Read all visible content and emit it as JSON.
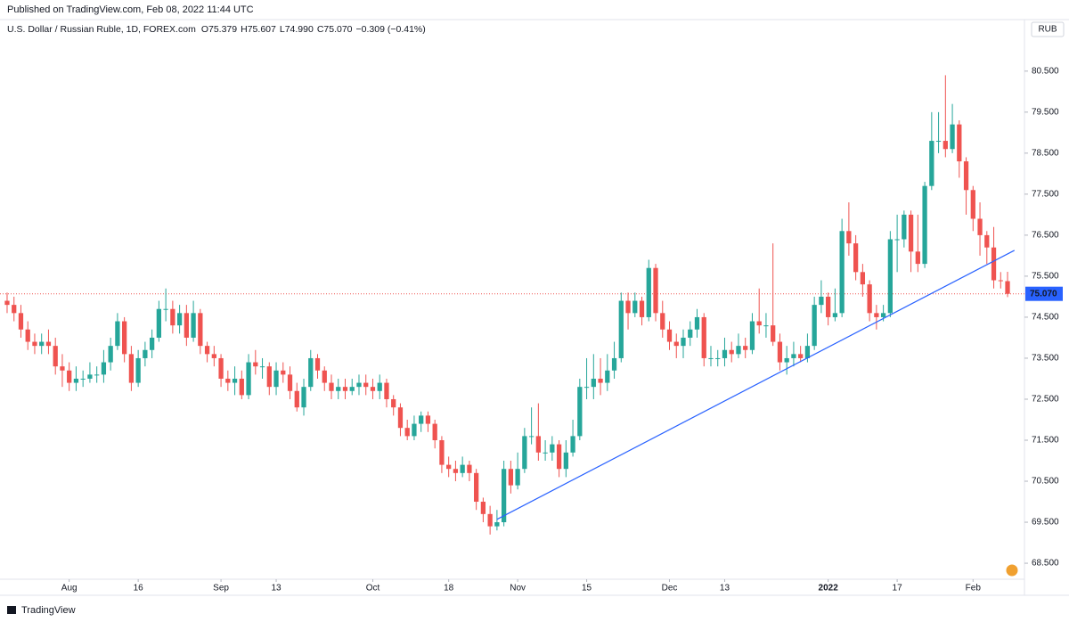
{
  "header": {
    "published": "Published on TradingView.com, Feb 08, 2022 11:44 UTC",
    "brand": "TradingView"
  },
  "chart_data": {
    "type": "candlestick",
    "title": "U.S. Dollar / Russian Ruble, 1D, FOREX.com",
    "ohlc_legend": [
      "O",
      "75.379",
      "H",
      "75.607",
      "L",
      "74.990",
      "C",
      "75.070",
      "−0.309 (−0.41%)"
    ],
    "currency": "RUB",
    "up_color": "#26a69a",
    "down_color": "#ef5350",
    "open": [
      74.9,
      74.8,
      74.6,
      74.2,
      73.9,
      73.8,
      73.9,
      73.8,
      73.3,
      73.2,
      72.9,
      73.0,
      73.0,
      73.1,
      73.1,
      73.4,
      73.8,
      74.4,
      73.6,
      72.9,
      73.5,
      73.7,
      74.0,
      74.7,
      74.7,
      74.3,
      74.6,
      74.0,
      74.6,
      73.8,
      73.6,
      73.5,
      73.0,
      72.9,
      73.0,
      72.6,
      73.4,
      73.3,
      73.3,
      72.8,
      73.2,
      73.1,
      72.7,
      72.3,
      72.8,
      73.5,
      73.2,
      72.9,
      72.7,
      72.8,
      72.7,
      72.8,
      72.9,
      72.8,
      72.7,
      72.9,
      72.5,
      72.3,
      71.8,
      71.6,
      71.9,
      72.1,
      71.9,
      71.5,
      70.9,
      70.8,
      70.7,
      70.9,
      70.7,
      70.0,
      69.7,
      69.4,
      69.5,
      70.8,
      70.4,
      70.8,
      71.6,
      71.6,
      71.2,
      71.2,
      71.4,
      70.8,
      71.2,
      71.6,
      72.8,
      72.8,
      73.0,
      72.9,
      73.2,
      73.5,
      74.9,
      74.6,
      74.9,
      74.5,
      75.7,
      74.6,
      74.2,
      73.9,
      73.8,
      74.0,
      74.2,
      74.5,
      73.5,
      73.5,
      73.5,
      73.7,
      73.6,
      73.8,
      73.7,
      74.4,
      74.3,
      74.3,
      73.9,
      73.4,
      73.5,
      73.6,
      73.5,
      73.8,
      74.8,
      75.0,
      74.5,
      74.6,
      76.6,
      76.3,
      75.6,
      75.3,
      74.6,
      74.5,
      74.6,
      76.4,
      76.4,
      77.0,
      76.1,
      75.8,
      77.7,
      78.8,
      78.8,
      78.6,
      79.2,
      78.3,
      77.6,
      76.9,
      76.5,
      76.2,
      75.4,
      75.379
    ],
    "high": [
      75.1,
      75.0,
      74.8,
      74.4,
      74.1,
      74.1,
      74.2,
      74.0,
      73.6,
      73.4,
      73.3,
      73.2,
      73.4,
      73.3,
      73.7,
      74.0,
      74.6,
      74.5,
      73.8,
      73.7,
      73.9,
      74.2,
      74.9,
      75.2,
      74.9,
      74.8,
      74.8,
      74.9,
      74.7,
      73.9,
      73.8,
      73.6,
      73.2,
      73.3,
      73.2,
      73.6,
      73.7,
      73.5,
      73.4,
      73.4,
      73.4,
      73.3,
      72.9,
      73.0,
      73.7,
      73.6,
      73.3,
      73.1,
      73.0,
      73.0,
      73.0,
      73.1,
      73.1,
      73.0,
      73.1,
      73.0,
      72.6,
      72.4,
      72.0,
      72.1,
      72.2,
      72.2,
      72.0,
      71.6,
      71.1,
      71.0,
      71.1,
      71.0,
      70.8,
      70.1,
      69.9,
      69.8,
      71.0,
      71.0,
      71.2,
      71.8,
      72.3,
      72.4,
      71.5,
      71.6,
      71.5,
      71.5,
      72.0,
      73.0,
      73.5,
      73.6,
      73.5,
      73.6,
      73.9,
      75.1,
      75.1,
      75.1,
      75.0,
      75.9,
      75.8,
      74.9,
      74.4,
      74.1,
      74.2,
      74.4,
      74.7,
      74.6,
      73.8,
      73.7,
      74.0,
      73.9,
      74.1,
      74.0,
      74.6,
      75.2,
      74.6,
      76.3,
      74.1,
      73.8,
      73.9,
      73.8,
      74.1,
      75.0,
      75.4,
      75.1,
      75.2,
      76.9,
      77.3,
      76.5,
      75.8,
      75.4,
      74.8,
      74.8,
      76.6,
      77.0,
      77.1,
      77.1,
      77.0,
      77.8,
      79.5,
      79.5,
      80.4,
      79.7,
      79.3,
      78.4,
      77.7,
      77.3,
      76.6,
      76.7,
      75.6,
      75.607
    ],
    "low": [
      74.6,
      74.4,
      74.0,
      73.7,
      73.6,
      73.6,
      73.6,
      73.1,
      72.8,
      72.7,
      72.7,
      72.8,
      72.9,
      72.9,
      72.9,
      73.2,
      73.7,
      73.4,
      72.7,
      72.8,
      73.3,
      73.5,
      73.9,
      74.4,
      74.1,
      74.1,
      73.8,
      73.9,
      73.6,
      73.4,
      73.3,
      72.8,
      72.7,
      72.6,
      72.5,
      72.5,
      73.1,
      73.0,
      72.6,
      72.6,
      72.9,
      72.5,
      72.2,
      72.1,
      72.7,
      73.0,
      72.7,
      72.5,
      72.5,
      72.5,
      72.6,
      72.6,
      72.6,
      72.5,
      72.5,
      72.3,
      72.1,
      71.6,
      71.5,
      71.5,
      71.7,
      71.7,
      71.3,
      70.7,
      70.6,
      70.5,
      70.6,
      70.5,
      69.8,
      69.5,
      69.2,
      69.3,
      69.4,
      70.2,
      70.3,
      70.7,
      71.4,
      71.0,
      71.0,
      71.0,
      70.6,
      70.6,
      71.1,
      71.5,
      72.5,
      72.5,
      72.6,
      72.7,
      73.0,
      73.4,
      74.2,
      74.5,
      74.3,
      74.4,
      74.4,
      74.0,
      73.7,
      73.5,
      73.5,
      73.8,
      74.0,
      73.3,
      73.3,
      73.3,
      73.3,
      73.4,
      73.5,
      73.5,
      73.6,
      74.1,
      74.0,
      73.8,
      73.2,
      73.1,
      73.3,
      73.4,
      73.4,
      73.7,
      74.6,
      74.3,
      74.4,
      74.5,
      76.0,
      75.4,
      75.0,
      74.4,
      74.2,
      74.4,
      74.5,
      75.6,
      76.2,
      75.6,
      75.6,
      75.7,
      77.6,
      78.5,
      78.4,
      78.5,
      77.9,
      77.0,
      76.6,
      76.0,
      75.8,
      75.2,
      75.2,
      74.99
    ],
    "close": [
      74.8,
      74.6,
      74.2,
      73.9,
      73.8,
      73.9,
      73.8,
      73.3,
      73.2,
      72.9,
      73.0,
      73.0,
      73.1,
      73.1,
      73.4,
      73.8,
      74.4,
      73.6,
      72.9,
      73.5,
      73.7,
      74.0,
      74.7,
      74.7,
      74.3,
      74.6,
      74.0,
      74.6,
      73.8,
      73.6,
      73.5,
      73.0,
      72.9,
      73.0,
      72.6,
      73.4,
      73.3,
      73.3,
      72.8,
      73.2,
      73.1,
      72.7,
      72.3,
      72.8,
      73.5,
      73.2,
      72.9,
      72.7,
      72.8,
      72.7,
      72.8,
      72.9,
      72.8,
      72.7,
      72.9,
      72.5,
      72.3,
      71.8,
      71.6,
      71.9,
      72.1,
      71.9,
      71.5,
      70.9,
      70.8,
      70.7,
      70.9,
      70.7,
      70.0,
      69.7,
      69.4,
      69.5,
      70.8,
      70.4,
      70.8,
      71.6,
      71.6,
      71.2,
      71.2,
      71.4,
      70.8,
      71.2,
      71.6,
      72.8,
      72.8,
      73.0,
      72.9,
      73.2,
      73.5,
      74.9,
      74.6,
      74.9,
      74.5,
      75.7,
      74.6,
      74.2,
      73.9,
      73.8,
      74.0,
      74.2,
      74.5,
      73.5,
      73.5,
      73.5,
      73.7,
      73.6,
      73.8,
      73.7,
      74.4,
      74.3,
      74.3,
      73.9,
      73.4,
      73.5,
      73.6,
      73.5,
      73.8,
      74.8,
      75.0,
      74.5,
      74.6,
      76.6,
      76.3,
      75.6,
      75.3,
      74.6,
      74.5,
      74.6,
      76.4,
      76.4,
      77.0,
      76.1,
      75.8,
      77.7,
      78.8,
      78.8,
      78.6,
      79.2,
      78.3,
      77.6,
      76.9,
      76.5,
      76.2,
      75.4,
      75.38,
      75.07
    ],
    "xlim": [
      -1.03,
      147.45
    ],
    "xticks": [
      {
        "value": 9,
        "label": "Aug"
      },
      {
        "value": 19,
        "label": "16"
      },
      {
        "value": 31,
        "label": "Sep"
      },
      {
        "value": 39,
        "label": "13"
      },
      {
        "value": 53,
        "label": "Oct"
      },
      {
        "value": 64,
        "label": "18"
      },
      {
        "value": 74,
        "label": "Nov"
      },
      {
        "value": 84,
        "label": "15"
      },
      {
        "value": 96,
        "label": "Dec"
      },
      {
        "value": 104,
        "label": "13"
      },
      {
        "value": 119,
        "label": "2022"
      },
      {
        "value": 129,
        "label": "17"
      },
      {
        "value": 140,
        "label": "Feb"
      }
    ],
    "ylim": [
      68.11,
      81.8
    ],
    "yticks": [
      {
        "value": 68.5,
        "label": "68.500"
      },
      {
        "value": 69.5,
        "label": "69.500"
      },
      {
        "value": 70.5,
        "label": "70.500"
      },
      {
        "value": 71.5,
        "label": "71.500"
      },
      {
        "value": 72.5,
        "label": "72.500"
      },
      {
        "value": 73.5,
        "label": "73.500"
      },
      {
        "value": 74.5,
        "label": "74.500"
      },
      {
        "value": 75.5,
        "label": "75.500"
      },
      {
        "value": 76.5,
        "label": "76.500"
      },
      {
        "value": 77.5,
        "label": "77.500"
      },
      {
        "value": 78.5,
        "label": "78.500"
      },
      {
        "value": 79.5,
        "label": "79.500"
      },
      {
        "value": 80.5,
        "label": "80.500"
      }
    ],
    "last_price": {
      "value": 75.07,
      "label": "75.070",
      "color": "#2962ff"
    },
    "trendline": {
      "x": [
        71,
        146
      ],
      "y": [
        69.57,
        76.13
      ],
      "color": "#2962ff"
    }
  }
}
